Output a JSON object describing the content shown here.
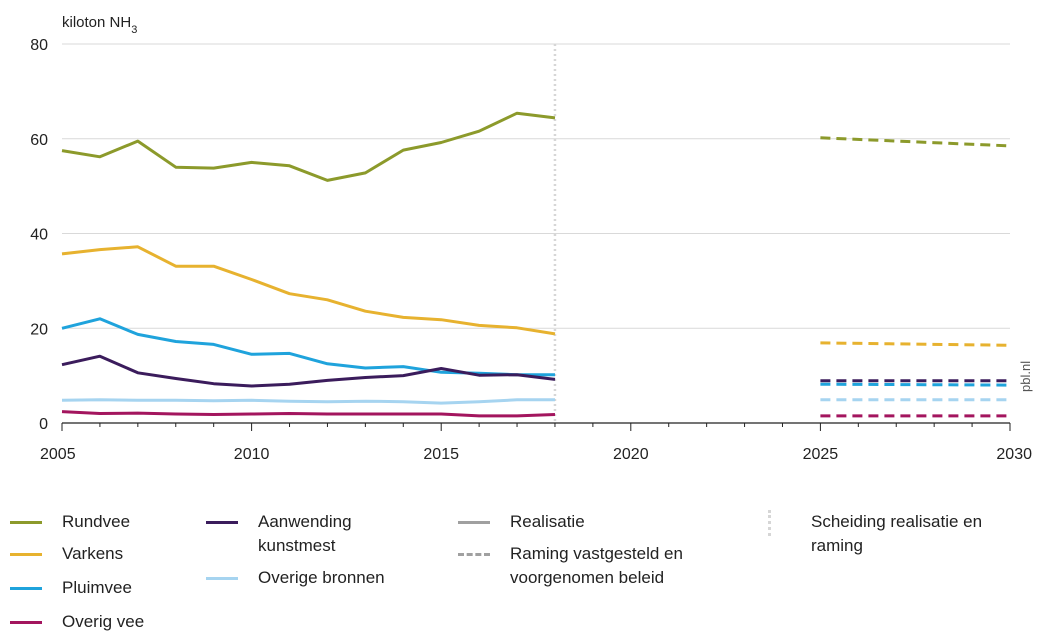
{
  "chart_data": {
    "type": "line",
    "ylabel": "kiloton NH",
    "ylabel_subscript": "3",
    "ylim": [
      0,
      80
    ],
    "yticks": [
      0,
      20,
      40,
      60,
      80
    ],
    "xlim": [
      2005,
      2030
    ],
    "xticks": [
      2005,
      2010,
      2015,
      2020,
      2025,
      2030
    ],
    "grid": "horizontal",
    "separator_year": 2018,
    "series": [
      {
        "name": "Rundvee",
        "color": "#8c9a2b",
        "x": [
          2005,
          2006,
          2007,
          2008,
          2009,
          2010,
          2011,
          2012,
          2013,
          2014,
          2015,
          2016,
          2017,
          2018
        ],
        "values": [
          57.5,
          56.2,
          59.5,
          54.0,
          53.8,
          55.0,
          54.3,
          51.2,
          52.8,
          57.6,
          59.2,
          61.6,
          65.4,
          64.4
        ],
        "projection_x": [
          2025,
          2030
        ],
        "projection_values": [
          60.2,
          58.5
        ]
      },
      {
        "name": "Varkens",
        "color": "#e7b22f",
        "x": [
          2005,
          2006,
          2007,
          2008,
          2009,
          2010,
          2011,
          2012,
          2013,
          2014,
          2015,
          2016,
          2017,
          2018
        ],
        "values": [
          35.7,
          36.6,
          37.2,
          33.1,
          33.1,
          30.3,
          27.3,
          26.0,
          23.6,
          22.3,
          21.8,
          20.6,
          20.1,
          18.8
        ],
        "projection_x": [
          2025,
          2030
        ],
        "projection_values": [
          16.9,
          16.4
        ]
      },
      {
        "name": "Pluimvee",
        "color": "#1fa3dc",
        "x": [
          2005,
          2006,
          2007,
          2008,
          2009,
          2010,
          2011,
          2012,
          2013,
          2014,
          2015,
          2016,
          2017,
          2018
        ],
        "values": [
          20.0,
          22.0,
          18.7,
          17.2,
          16.6,
          14.5,
          14.7,
          12.5,
          11.6,
          11.9,
          10.7,
          10.5,
          10.2,
          10.2
        ],
        "projection_x": [
          2025,
          2030
        ],
        "projection_values": [
          8.2,
          8.0
        ]
      },
      {
        "name": "Overig vee",
        "color": "#a3155e",
        "x": [
          2005,
          2006,
          2007,
          2008,
          2009,
          2010,
          2011,
          2012,
          2013,
          2014,
          2015,
          2016,
          2017,
          2018
        ],
        "values": [
          2.4,
          2.0,
          2.1,
          1.9,
          1.8,
          1.9,
          2.0,
          1.9,
          1.9,
          1.9,
          1.9,
          1.5,
          1.5,
          1.8
        ],
        "projection_x": [
          2025,
          2030
        ],
        "projection_values": [
          1.5,
          1.5
        ]
      },
      {
        "name": "Aanwending kunstmest",
        "color": "#3b1c5c",
        "x": [
          2005,
          2006,
          2007,
          2008,
          2009,
          2010,
          2011,
          2012,
          2013,
          2014,
          2015,
          2016,
          2017,
          2018
        ],
        "values": [
          12.3,
          14.1,
          10.6,
          9.4,
          8.3,
          7.8,
          8.2,
          9.0,
          9.6,
          10.0,
          11.5,
          10.1,
          10.2,
          9.2
        ],
        "projection_x": [
          2025,
          2030
        ],
        "projection_values": [
          8.9,
          8.9
        ]
      },
      {
        "name": "Overige bronnen",
        "color": "#a6d4f0",
        "x": [
          2005,
          2006,
          2007,
          2008,
          2009,
          2010,
          2011,
          2012,
          2013,
          2014,
          2015,
          2016,
          2017,
          2018
        ],
        "values": [
          4.8,
          4.9,
          4.8,
          4.8,
          4.7,
          4.8,
          4.6,
          4.5,
          4.6,
          4.5,
          4.2,
          4.5,
          4.9,
          4.9
        ],
        "projection_x": [
          2025,
          2030
        ],
        "projection_values": [
          4.9,
          4.9
        ]
      }
    ]
  },
  "legend": {
    "realisatie": "Realisatie",
    "raming": "Raming vastgesteld en voorgenomen beleid",
    "scheiding": "Scheiding realisatie en raming",
    "realisatie_color": "#a0a0a0",
    "raming_color": "#a0a0a0",
    "scheiding_color": "#d6d6d6"
  },
  "credit": "pbl.nl"
}
